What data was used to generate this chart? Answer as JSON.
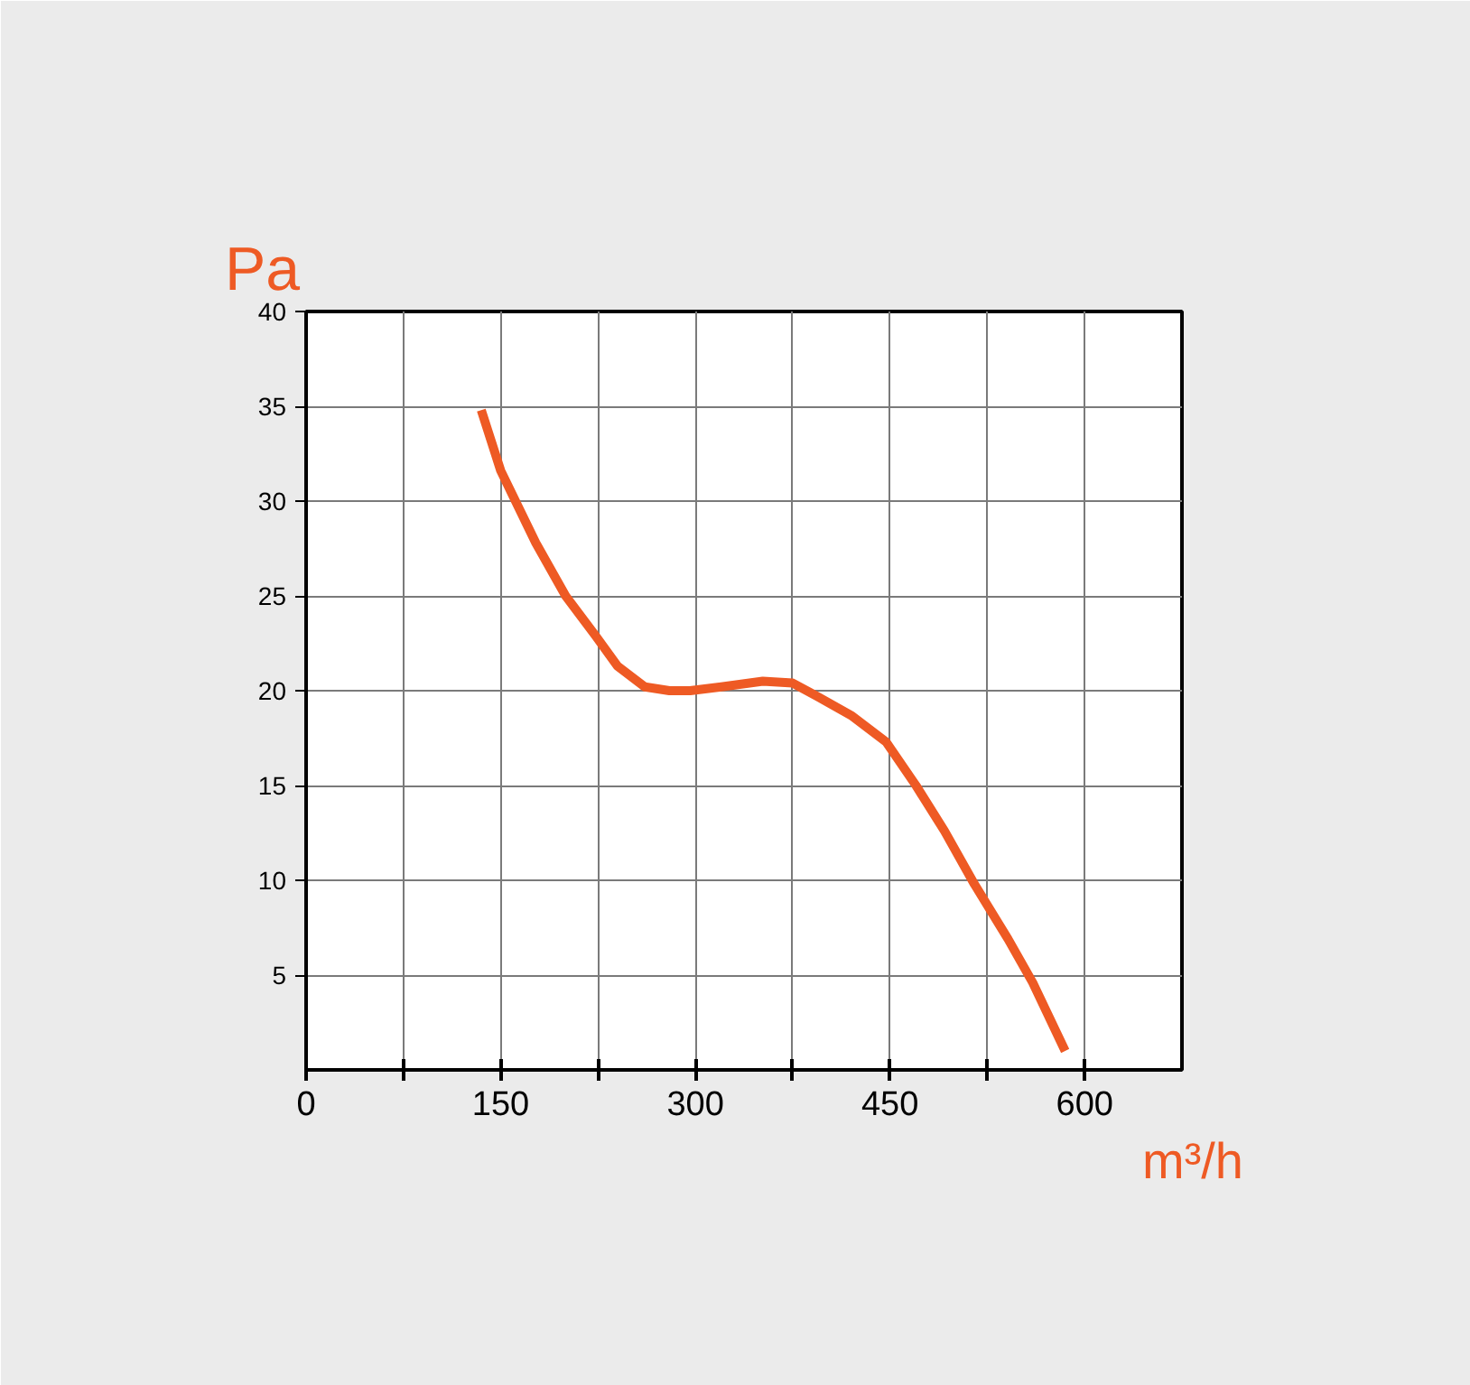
{
  "chart_data": {
    "type": "line",
    "xlabel": "m³/h",
    "ylabel": "Pa",
    "x": [
      135,
      150,
      177,
      200,
      223,
      240,
      261,
      280,
      296,
      320,
      352,
      375,
      394,
      420,
      447,
      470,
      492,
      515,
      541,
      560,
      585
    ],
    "series": [
      {
        "color": "#ee5a24",
        "values": [
          34.8,
          31.6,
          27.8,
          25.0,
          22.9,
          21.3,
          20.2,
          20.0,
          20.0,
          20.2,
          20.5,
          20.4,
          19.7,
          18.7,
          17.3,
          15.0,
          12.6,
          9.8,
          6.9,
          4.6,
          1.0
        ]
      }
    ],
    "xlim": [
      0,
      675
    ],
    "ylim": [
      0,
      40
    ],
    "xticks": [
      0,
      {
        "value": 75,
        "label": null
      },
      150,
      {
        "value": 225,
        "label": null
      },
      300,
      {
        "value": 375,
        "label": null
      },
      450,
      {
        "value": 525,
        "label": null
      },
      600
    ],
    "yticks": [
      5,
      10,
      15,
      20,
      25,
      30,
      35,
      40
    ],
    "grid": true,
    "marker": "none",
    "line_style": "solid"
  }
}
